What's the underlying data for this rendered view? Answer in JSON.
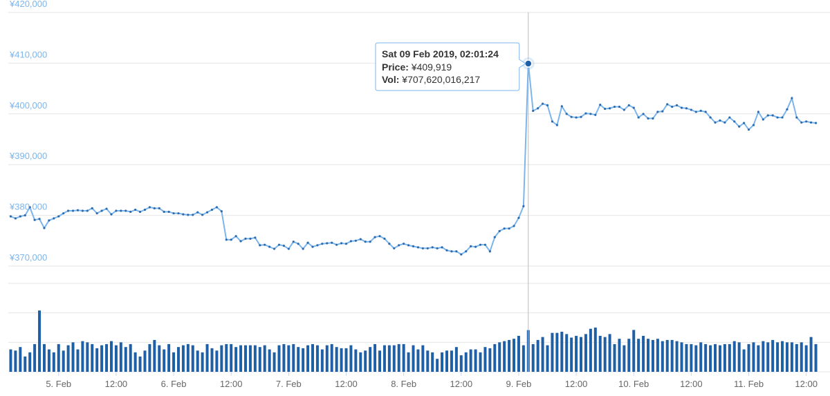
{
  "chart_data": {
    "type": "line",
    "color": "#7cb5ec",
    "marker_color": "#2b6cb0",
    "xlim": [
      "2019-02-04T13:30",
      "2019-02-11T14:30"
    ],
    "xticks": [
      {
        "value": "2019-02-05T00:00",
        "label": "5. Feb"
      },
      {
        "value": "2019-02-05T12:00",
        "label": "12:00"
      },
      {
        "value": "2019-02-06T00:00",
        "label": "6. Feb"
      },
      {
        "value": "2019-02-06T12:00",
        "label": "12:00"
      },
      {
        "value": "2019-02-07T00:00",
        "label": "7. Feb"
      },
      {
        "value": "2019-02-07T12:00",
        "label": "12:00"
      },
      {
        "value": "2019-02-08T00:00",
        "label": "8. Feb"
      },
      {
        "value": "2019-02-08T12:00",
        "label": "12:00"
      },
      {
        "value": "2019-02-09T00:00",
        "label": "9. Feb"
      },
      {
        "value": "2019-02-09T12:00",
        "label": "12:00"
      },
      {
        "value": "2019-02-10T00:00",
        "label": "10. Feb"
      },
      {
        "value": "2019-02-10T12:00",
        "label": "12:00"
      },
      {
        "value": "2019-02-11T00:00",
        "label": "11. Feb"
      },
      {
        "value": "2019-02-11T12:00",
        "label": "12:00"
      }
    ],
    "ylim": [
      370000,
      420000
    ],
    "yticks": [
      {
        "value": 370000,
        "label": "¥370,000"
      },
      {
        "value": 380000,
        "label": "¥380,000"
      },
      {
        "value": 390000,
        "label": "¥390,000"
      },
      {
        "value": 400000,
        "label": "¥400,000"
      },
      {
        "value": 410000,
        "label": "¥410,000"
      },
      {
        "value": 420000,
        "label": "¥420,000"
      }
    ],
    "grid": true,
    "x": [
      "2019-02-04T14:00",
      "2019-02-04T15:00",
      "2019-02-04T16:00",
      "2019-02-04T17:00",
      "2019-02-04T18:00",
      "2019-02-04T19:00",
      "2019-02-04T20:00",
      "2019-02-04T21:00",
      "2019-02-04T22:00",
      "2019-02-04T23:00",
      "2019-02-05T00:00",
      "2019-02-05T01:00",
      "2019-02-05T02:00",
      "2019-02-05T03:00",
      "2019-02-05T04:00",
      "2019-02-05T05:00",
      "2019-02-05T06:00",
      "2019-02-05T07:00",
      "2019-02-05T08:00",
      "2019-02-05T09:00",
      "2019-02-05T10:00",
      "2019-02-05T11:00",
      "2019-02-05T12:00",
      "2019-02-05T13:00",
      "2019-02-05T14:00",
      "2019-02-05T15:00",
      "2019-02-05T16:00",
      "2019-02-05T17:00",
      "2019-02-05T18:00",
      "2019-02-05T19:00",
      "2019-02-05T20:00",
      "2019-02-05T21:00",
      "2019-02-05T22:00",
      "2019-02-05T23:00",
      "2019-02-06T00:00",
      "2019-02-06T01:00",
      "2019-02-06T02:00",
      "2019-02-06T03:00",
      "2019-02-06T04:00",
      "2019-02-06T05:00",
      "2019-02-06T06:00",
      "2019-02-06T07:00",
      "2019-02-06T08:00",
      "2019-02-06T09:00",
      "2019-02-06T10:00",
      "2019-02-06T11:00",
      "2019-02-06T12:00",
      "2019-02-06T13:00",
      "2019-02-06T14:00",
      "2019-02-06T15:00",
      "2019-02-06T16:00",
      "2019-02-06T17:00",
      "2019-02-06T18:00",
      "2019-02-06T19:00",
      "2019-02-06T20:00",
      "2019-02-06T21:00",
      "2019-02-06T22:00",
      "2019-02-06T23:00",
      "2019-02-07T00:00",
      "2019-02-07T01:00",
      "2019-02-07T02:00",
      "2019-02-07T03:00",
      "2019-02-07T04:00",
      "2019-02-07T05:00",
      "2019-02-07T06:00",
      "2019-02-07T07:00",
      "2019-02-07T08:00",
      "2019-02-07T09:00",
      "2019-02-07T10:00",
      "2019-02-07T11:00",
      "2019-02-07T12:00",
      "2019-02-07T13:00",
      "2019-02-07T14:00",
      "2019-02-07T15:00",
      "2019-02-07T16:00",
      "2019-02-07T17:00",
      "2019-02-07T18:00",
      "2019-02-07T19:00",
      "2019-02-07T20:00",
      "2019-02-07T21:00",
      "2019-02-07T22:00",
      "2019-02-07T23:00",
      "2019-02-08T00:00",
      "2019-02-08T01:00",
      "2019-02-08T02:00",
      "2019-02-08T03:00",
      "2019-02-08T04:00",
      "2019-02-08T05:00",
      "2019-02-08T06:00",
      "2019-02-08T07:00",
      "2019-02-08T08:00",
      "2019-02-08T09:00",
      "2019-02-08T10:00",
      "2019-02-08T11:00",
      "2019-02-08T12:00",
      "2019-02-08T13:00",
      "2019-02-08T14:00",
      "2019-02-08T15:00",
      "2019-02-08T16:00",
      "2019-02-08T17:00",
      "2019-02-08T18:00",
      "2019-02-08T19:00",
      "2019-02-08T20:00",
      "2019-02-08T21:00",
      "2019-02-08T22:00",
      "2019-02-08T23:00",
      "2019-02-09T00:00",
      "2019-02-09T01:00",
      "2019-02-09T02:00",
      "2019-02-09T03:00",
      "2019-02-09T04:00",
      "2019-02-09T05:00",
      "2019-02-09T06:00",
      "2019-02-09T07:00",
      "2019-02-09T08:00",
      "2019-02-09T09:00",
      "2019-02-09T10:00",
      "2019-02-09T11:00",
      "2019-02-09T12:00",
      "2019-02-09T13:00",
      "2019-02-09T14:00",
      "2019-02-09T15:00",
      "2019-02-09T16:00",
      "2019-02-09T17:00",
      "2019-02-09T18:00",
      "2019-02-09T19:00",
      "2019-02-09T20:00",
      "2019-02-09T21:00",
      "2019-02-09T22:00",
      "2019-02-09T23:00",
      "2019-02-10T00:00",
      "2019-02-10T01:00",
      "2019-02-10T02:00",
      "2019-02-10T03:00",
      "2019-02-10T04:00",
      "2019-02-10T05:00",
      "2019-02-10T06:00",
      "2019-02-10T07:00",
      "2019-02-10T08:00",
      "2019-02-10T09:00",
      "2019-02-10T10:00",
      "2019-02-10T11:00",
      "2019-02-10T12:00",
      "2019-02-10T13:00",
      "2019-02-10T14:00",
      "2019-02-10T15:00",
      "2019-02-10T16:00",
      "2019-02-10T17:00",
      "2019-02-10T18:00",
      "2019-02-10T19:00",
      "2019-02-10T20:00",
      "2019-02-10T21:00",
      "2019-02-10T22:00",
      "2019-02-10T23:00",
      "2019-02-11T00:00",
      "2019-02-11T01:00",
      "2019-02-11T02:00",
      "2019-02-11T03:00",
      "2019-02-11T04:00",
      "2019-02-11T05:00",
      "2019-02-11T06:00",
      "2019-02-11T07:00",
      "2019-02-11T08:00",
      "2019-02-11T09:00",
      "2019-02-11T10:00",
      "2019-02-11T11:00",
      "2019-02-11T12:00",
      "2019-02-11T13:00",
      "2019-02-11T14:00"
    ],
    "values": [
      379800,
      379400,
      379800,
      380000,
      381600,
      379100,
      379300,
      377500,
      379000,
      379400,
      379800,
      380400,
      380900,
      380900,
      381000,
      380900,
      380900,
      381400,
      380400,
      380900,
      381300,
      380200,
      380900,
      380900,
      380900,
      380700,
      381100,
      380700,
      381100,
      381600,
      381400,
      381400,
      380700,
      380700,
      380400,
      380400,
      380200,
      380100,
      380100,
      380600,
      380100,
      380600,
      381100,
      381600,
      380800,
      375200,
      375200,
      375900,
      374900,
      375400,
      375400,
      375600,
      374100,
      374200,
      373800,
      373400,
      374200,
      374000,
      373400,
      374800,
      374400,
      373400,
      374600,
      373800,
      374100,
      374400,
      374500,
      374600,
      374200,
      374500,
      374400,
      374900,
      375000,
      375300,
      374800,
      374800,
      375700,
      375900,
      375400,
      374400,
      373500,
      374100,
      374400,
      374100,
      373900,
      373700,
      373500,
      373500,
      373700,
      373500,
      373700,
      373100,
      372900,
      372900,
      372300,
      372900,
      373900,
      373800,
      374200,
      374200,
      372900,
      375700,
      376900,
      377400,
      377400,
      377900,
      379500,
      381800,
      409919,
      400600,
      401100,
      402000,
      401700,
      398500,
      397800,
      401500,
      400000,
      399400,
      399300,
      399400,
      400100,
      400000,
      399800,
      401800,
      401000,
      401100,
      401400,
      401400,
      400800,
      401700,
      401200,
      399300,
      400000,
      399100,
      399100,
      400400,
      400500,
      401900,
      401400,
      401700,
      401200,
      401100,
      400800,
      400400,
      400600,
      400400,
      399300,
      398300,
      398700,
      398300,
      399300,
      398500,
      397500,
      398200,
      396900,
      397800,
      400400,
      398900,
      399700,
      399700,
      399300,
      399300,
      400900,
      403100,
      399300,
      398300,
      398500,
      398300,
      398200
    ],
    "volume": {
      "type": "bar",
      "color": "#1f5fa6",
      "ylim": [
        0,
        1500000000000.0
      ],
      "grid": [
        0,
        500000000000.0,
        1000000000000.0,
        1500000000000.0
      ],
      "values": [
        380000000000.0,
        360000000000.0,
        420000000000.0,
        260000000000.0,
        330000000000.0,
        470000000000.0,
        1040000000000.0,
        470000000000.0,
        380000000000.0,
        330000000000.0,
        470000000000.0,
        360000000000.0,
        450000000000.0,
        500000000000.0,
        380000000000.0,
        520000000000.0,
        500000000000.0,
        470000000000.0,
        400000000000.0,
        450000000000.0,
        470000000000.0,
        520000000000.0,
        450000000000.0,
        500000000000.0,
        420000000000.0,
        470000000000.0,
        330000000000.0,
        260000000000.0,
        360000000000.0,
        470000000000.0,
        540000000000.0,
        450000000000.0,
        380000000000.0,
        470000000000.0,
        330000000000.0,
        420000000000.0,
        450000000000.0,
        470000000000.0,
        450000000000.0,
        360000000000.0,
        330000000000.0,
        470000000000.0,
        400000000000.0,
        360000000000.0,
        450000000000.0,
        470000000000.0,
        470000000000.0,
        420000000000.0,
        450000000000.0,
        450000000000.0,
        450000000000.0,
        450000000000.0,
        420000000000.0,
        450000000000.0,
        380000000000.0,
        330000000000.0,
        450000000000.0,
        470000000000.0,
        450000000000.0,
        470000000000.0,
        420000000000.0,
        400000000000.0,
        450000000000.0,
        470000000000.0,
        450000000000.0,
        380000000000.0,
        450000000000.0,
        470000000000.0,
        420000000000.0,
        400000000000.0,
        400000000000.0,
        450000000000.0,
        380000000000.0,
        330000000000.0,
        360000000000.0,
        420000000000.0,
        470000000000.0,
        360000000000.0,
        450000000000.0,
        450000000000.0,
        450000000000.0,
        470000000000.0,
        470000000000.0,
        330000000000.0,
        450000000000.0,
        380000000000.0,
        450000000000.0,
        360000000000.0,
        330000000000.0,
        220000000000.0,
        330000000000.0,
        360000000000.0,
        360000000000.0,
        420000000000.0,
        280000000000.0,
        330000000000.0,
        380000000000.0,
        380000000000.0,
        330000000000.0,
        420000000000.0,
        400000000000.0,
        470000000000.0,
        500000000000.0,
        520000000000.0,
        540000000000.0,
        560000000000.0,
        610000000000.0,
        450000000000.0,
        707620016217,
        470000000000.0,
        540000000000.0,
        590000000000.0,
        450000000000.0,
        660000000000.0,
        660000000000.0,
        680000000000.0,
        640000000000.0,
        580000000000.0,
        610000000000.0,
        590000000000.0,
        640000000000.0,
        730000000000.0,
        750000000000.0,
        610000000000.0,
        590000000000.0,
        640000000000.0,
        470000000000.0,
        560000000000.0,
        450000000000.0,
        560000000000.0,
        710000000000.0,
        560000000000.0,
        610000000000.0,
        560000000000.0,
        540000000000.0,
        560000000000.0,
        520000000000.0,
        540000000000.0,
        540000000000.0,
        520000000000.0,
        500000000000.0,
        470000000000.0,
        470000000000.0,
        450000000000.0,
        500000000000.0,
        470000000000.0,
        450000000000.0,
        470000000000.0,
        450000000000.0,
        470000000000.0,
        470000000000.0,
        520000000000.0,
        500000000000.0,
        380000000000.0,
        470000000000.0,
        500000000000.0,
        450000000000.0,
        520000000000.0,
        500000000000.0,
        540000000000.0,
        500000000000.0,
        520000000000.0,
        500000000000.0,
        500000000000.0,
        470000000000.0,
        500000000000.0,
        450000000000.0,
        590000000000.0,
        470000000000.0
      ]
    },
    "tooltip": {
      "index": 108,
      "date": "Sat 09 Feb 2019, 02:01:24",
      "price_label": "Price:",
      "price": "¥409,919",
      "vol_label": "Vol:",
      "vol": "¥707,620,016,217"
    }
  }
}
